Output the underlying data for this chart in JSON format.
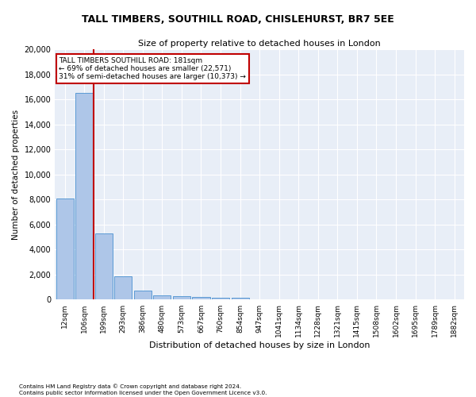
{
  "title1": "TALL TIMBERS, SOUTHILL ROAD, CHISLEHURST, BR7 5EE",
  "title2": "Size of property relative to detached houses in London",
  "xlabel": "Distribution of detached houses by size in London",
  "ylabel": "Number of detached properties",
  "footnote": "Contains HM Land Registry data © Crown copyright and database right 2024.\nContains public sector information licensed under the Open Government Licence v3.0.",
  "annotation_title": "TALL TIMBERS SOUTHILL ROAD: 181sqm",
  "annotation_line2": "← 69% of detached houses are smaller (22,571)",
  "annotation_line3": "31% of semi-detached houses are larger (10,373) →",
  "bar_categories": [
    "12sqm",
    "106sqm",
    "199sqm",
    "293sqm",
    "386sqm",
    "480sqm",
    "573sqm",
    "667sqm",
    "760sqm",
    "854sqm",
    "947sqm",
    "1041sqm",
    "1134sqm",
    "1228sqm",
    "1321sqm",
    "1415sqm",
    "1508sqm",
    "1602sqm",
    "1695sqm",
    "1789sqm",
    "1882sqm"
  ],
  "bar_values": [
    8100,
    16500,
    5300,
    1850,
    700,
    350,
    260,
    210,
    180,
    150,
    0,
    0,
    0,
    0,
    0,
    0,
    0,
    0,
    0,
    0,
    0
  ],
  "bar_color": "#aec6e8",
  "bar_edge_color": "#5b9bd5",
  "vline_color": "#c00000",
  "annotation_box_color": "#c00000",
  "background_color": "#e8eef7",
  "ylim": [
    0,
    20000
  ],
  "yticks": [
    0,
    2000,
    4000,
    6000,
    8000,
    10000,
    12000,
    14000,
    16000,
    18000,
    20000
  ]
}
